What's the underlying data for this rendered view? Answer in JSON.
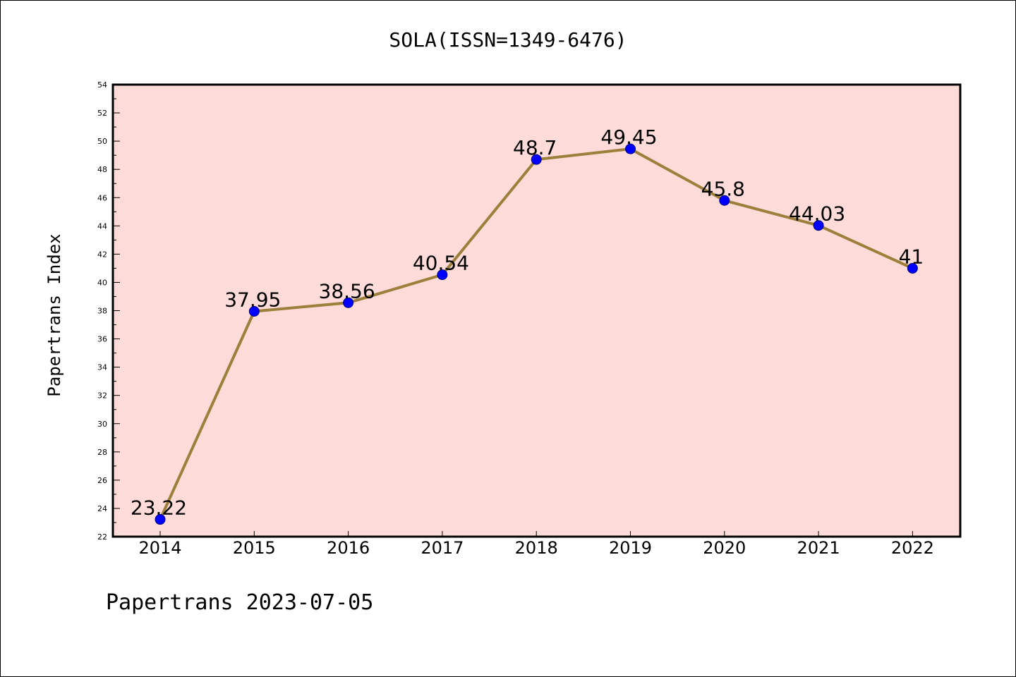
{
  "chart_data": {
    "type": "line",
    "title": "SOLA(ISSN=1349-6476)",
    "ylabel": "Papertrans Index",
    "xlabel": "",
    "categories": [
      "2014",
      "2015",
      "2016",
      "2017",
      "2018",
      "2019",
      "2020",
      "2021",
      "2022"
    ],
    "series": [
      {
        "values": [
          23.22,
          37.95,
          38.56,
          40.54,
          48.7,
          49.45,
          45.8,
          44.03,
          41
        ],
        "labels": [
          "23.22",
          "37.95",
          "38.56",
          "40.54",
          "48.7",
          "49.45",
          "45.8",
          "44.03",
          "41"
        ]
      }
    ],
    "ylim": [
      22,
      54
    ],
    "yticks": [
      "22",
      "24",
      "26",
      "28",
      "30",
      "32",
      "34",
      "36",
      "38",
      "40",
      "42",
      "44",
      "46",
      "48",
      "50",
      "52",
      "54"
    ],
    "grid": false,
    "legend": "none",
    "colors": {
      "plot_background": "#fddbd8",
      "line": "#9b7f3a",
      "marker": "#0000ff",
      "marker_edge": "#000080"
    }
  },
  "footer": "Papertrans 2023-07-05"
}
